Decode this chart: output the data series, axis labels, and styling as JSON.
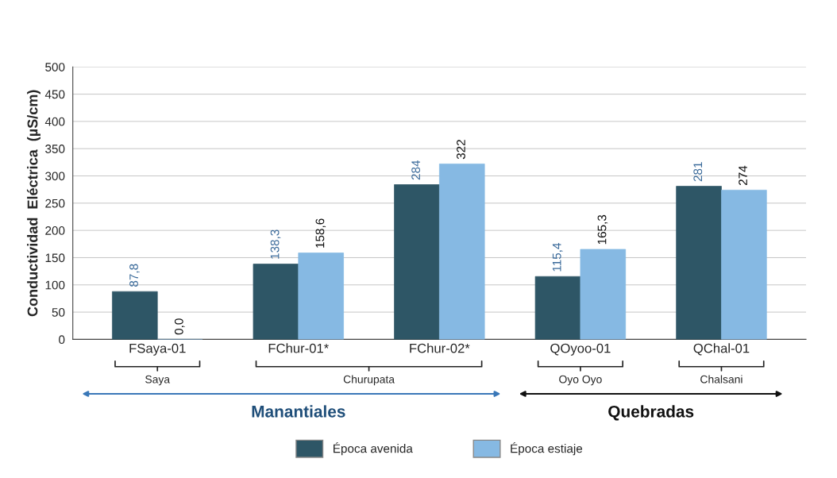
{
  "chart_data": {
    "type": "bar",
    "ylabel": "Conductividad  Eléctrica  (µS/cm)",
    "categories": [
      "FSaya-01",
      "FChur-01*",
      "FChur-02*",
      "QOyoo-01",
      "QChal-01"
    ],
    "series": [
      {
        "name": "Época avenida",
        "color": "#2e5666",
        "values": [
          87.8,
          138.3,
          284,
          115.4,
          281
        ],
        "value_labels": [
          "87,8",
          "138,3",
          "284",
          "115,4",
          "281"
        ]
      },
      {
        "name": "Época estiaje",
        "color": "#86b9e3",
        "values": [
          0.0,
          158.6,
          322,
          165.3,
          274
        ],
        "value_labels": [
          "0,0",
          "158,6",
          "322",
          "165,3",
          "274"
        ]
      }
    ],
    "ylim": [
      0,
      500
    ],
    "yticks": [
      0,
      50,
      100,
      150,
      200,
      250,
      300,
      350,
      400,
      450,
      500
    ],
    "grid": "y",
    "legend": "bottom",
    "annotations": [
      "Saya",
      "Churupata",
      "Oyo Oyo",
      "Chalsani",
      "Manantiales",
      "Quebradas"
    ]
  }
}
